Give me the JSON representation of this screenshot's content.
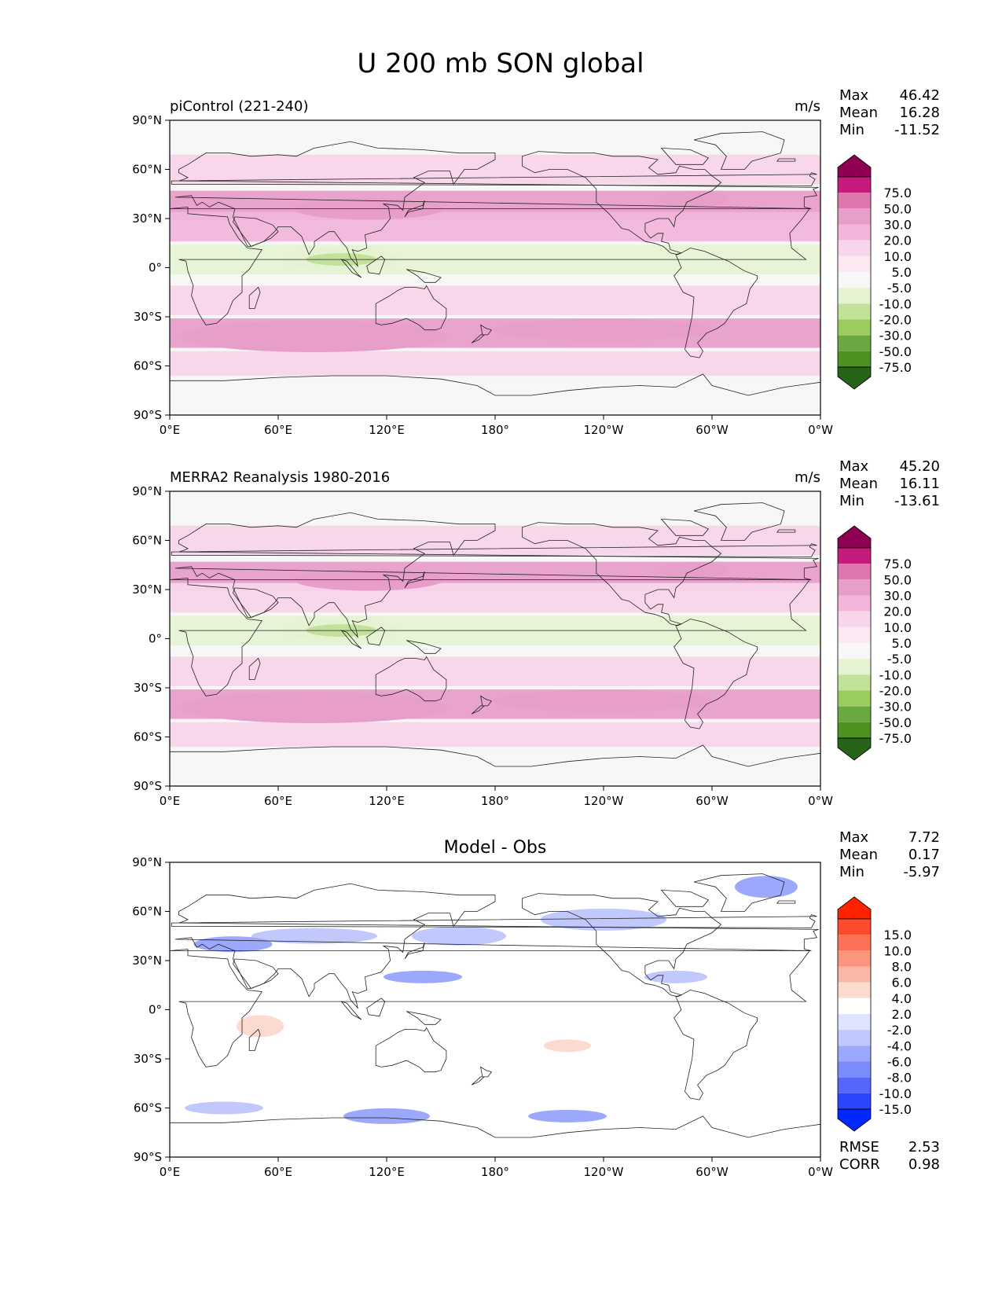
{
  "figure": {
    "title": "U 200 mb SON global"
  },
  "axes": {
    "x_ticks": [
      "0°E",
      "60°E",
      "120°E",
      "180°",
      "120°W",
      "60°W",
      "0°W"
    ],
    "y_ticks": [
      "90°N",
      "60°N",
      "30°N",
      "0°",
      "30°S",
      "60°S",
      "90°S"
    ]
  },
  "chart_data": [
    {
      "type": "heatmap",
      "title": "piControl (221-240)",
      "units": "m/s",
      "stats": [
        {
          "label": "Max",
          "value": "46.42"
        },
        {
          "label": "Mean",
          "value": "16.28"
        },
        {
          "label": "Min",
          "value": "-11.52"
        }
      ],
      "colorbar": {
        "labels": [
          "75.0",
          "50.0",
          "30.0",
          "20.0",
          "10.0",
          "5.0",
          "-5.0",
          "-10.0",
          "-20.0",
          "-30.0",
          "-50.0",
          "-75.0"
        ],
        "colors": [
          "#8e0152",
          "#c51b7d",
          "#de77ae",
          "#e79fc9",
          "#f1b6da",
          "#f8d5ea",
          "#fbe8f3",
          "#f7f7f7",
          "#e6f3d3",
          "#c2e29a",
          "#9acc5e",
          "#6aa841",
          "#4d9221",
          "#276419"
        ]
      },
      "x_range_degE": [
        0,
        360
      ],
      "y_range_deg": [
        -90,
        90
      ],
      "jet_bands_lat_m_per_s": [
        {
          "lat": 60,
          "u": 15
        },
        {
          "lat": 38,
          "u": 35
        },
        {
          "lat": 25,
          "u": 22
        },
        {
          "lat": 5,
          "u": -5
        },
        {
          "lat": -20,
          "u": 15
        },
        {
          "lat": -40,
          "u": 32
        },
        {
          "lat": -60,
          "u": 20
        },
        {
          "lat": -75,
          "u": 5
        }
      ]
    },
    {
      "type": "heatmap",
      "title": "MERRA2 Reanalysis 1980-2016",
      "units": "m/s",
      "stats": [
        {
          "label": "Max",
          "value": "45.20"
        },
        {
          "label": "Mean",
          "value": "16.11"
        },
        {
          "label": "Min",
          "value": "-13.61"
        }
      ],
      "colorbar": {
        "labels": [
          "75.0",
          "50.0",
          "30.0",
          "20.0",
          "10.0",
          "5.0",
          "-5.0",
          "-10.0",
          "-20.0",
          "-30.0",
          "-50.0",
          "-75.0"
        ],
        "colors": [
          "#8e0152",
          "#c51b7d",
          "#de77ae",
          "#e79fc9",
          "#f1b6da",
          "#f8d5ea",
          "#fbe8f3",
          "#f7f7f7",
          "#e6f3d3",
          "#c2e29a",
          "#9acc5e",
          "#6aa841",
          "#4d9221",
          "#276419"
        ]
      },
      "x_range_degE": [
        0,
        360
      ],
      "y_range_deg": [
        -90,
        90
      ],
      "jet_bands_lat_m_per_s": [
        {
          "lat": 60,
          "u": 15
        },
        {
          "lat": 38,
          "u": 33
        },
        {
          "lat": 25,
          "u": 20
        },
        {
          "lat": 5,
          "u": -8
        },
        {
          "lat": -20,
          "u": 12
        },
        {
          "lat": -40,
          "u": 32
        },
        {
          "lat": -60,
          "u": 20
        },
        {
          "lat": -75,
          "u": 5
        }
      ]
    },
    {
      "type": "heatmap",
      "title": "Model - Obs",
      "units": "",
      "stats": [
        {
          "label": "Max",
          "value": "7.72"
        },
        {
          "label": "Mean",
          "value": "0.17"
        },
        {
          "label": "Min",
          "value": "-5.97"
        }
      ],
      "extra_stats": [
        {
          "label": "RMSE",
          "value": "2.53"
        },
        {
          "label": "CORR",
          "value": "0.98"
        }
      ],
      "colorbar": {
        "labels": [
          "15.0",
          "10.0",
          "8.0",
          "6.0",
          "4.0",
          "2.0",
          "-2.0",
          "-4.0",
          "-6.0",
          "-8.0",
          "-10.0",
          "-15.0"
        ],
        "colors": [
          "#ff2200",
          "#ff4b2d",
          "#fd7158",
          "#fc9580",
          "#fbb8a8",
          "#fddad0",
          "#ffffff",
          "#dfe3fd",
          "#c1c8fb",
          "#9ba8fb",
          "#7a8cfb",
          "#5566fa",
          "#2c44fa",
          "#0028ff"
        ]
      },
      "x_range_degE": [
        0,
        360
      ],
      "y_range_deg": [
        -90,
        90
      ]
    }
  ]
}
